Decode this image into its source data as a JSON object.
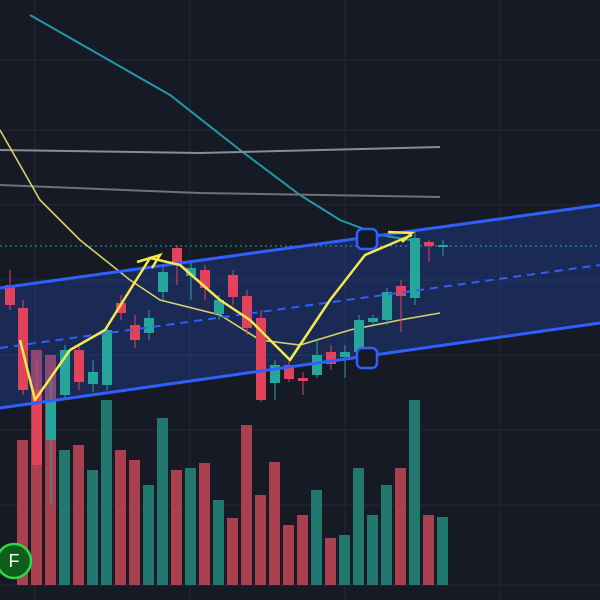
{
  "badge": {
    "label": "F"
  }
}
